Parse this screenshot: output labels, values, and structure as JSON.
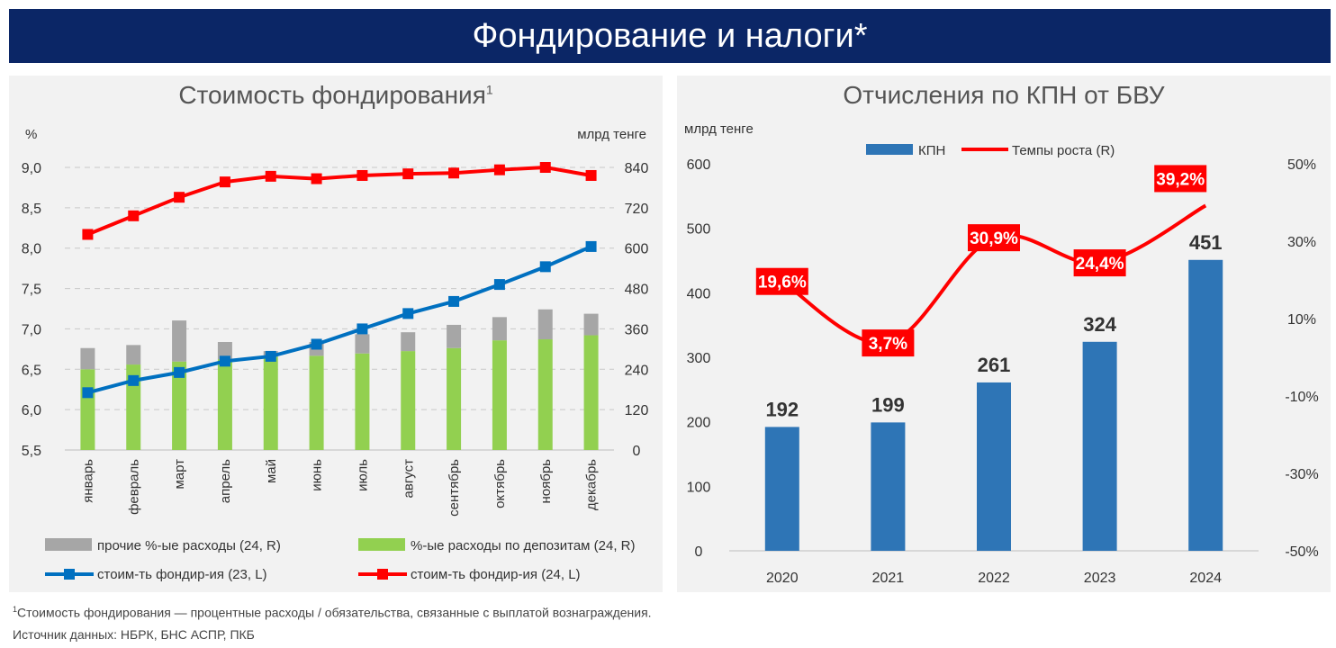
{
  "banner": {
    "title": "Фондирование и налоги*"
  },
  "footnote": {
    "marker": "1",
    "text": "Стоимость фондирования — процентные расходы / обязательства, связанные с выплатой вознаграждения.",
    "source": "Источник данных: НБРК, БНС АСПР, ПКБ"
  },
  "chart_data": [
    {
      "type": "bar",
      "title": "Стоимость фондирования",
      "title_sup": "1",
      "ylabel": "%",
      "ylabel_right": "млрд тенге",
      "ylim": [
        5.5,
        9.0
      ],
      "yticks": [
        "5,5",
        "6,0",
        "6,5",
        "7,0",
        "7,5",
        "8,0",
        "8,5",
        "9,0"
      ],
      "ylim_right": [
        0,
        840
      ],
      "yticks_right": [
        "0",
        "120",
        "240",
        "360",
        "480",
        "600",
        "720",
        "840"
      ],
      "categories": [
        "январь",
        "февраль",
        "март",
        "апрель",
        "май",
        "июнь",
        "июль",
        "август",
        "сентябрь",
        "октябрь",
        "ноябрь",
        "декабрь"
      ],
      "grid": true,
      "legend_position": "bottom",
      "series": [
        {
          "name": "%-ые расходы по депозитам (24, R)",
          "kind": "bar-stack",
          "axis": "right",
          "color": "#92d050",
          "values": [
            240,
            254,
            263,
            270,
            277,
            280,
            287,
            294,
            303,
            326,
            329,
            341
          ]
        },
        {
          "name": "прочие %-ые расходы (24, R)",
          "kind": "bar-stack",
          "axis": "right",
          "color": "#a6a6a6",
          "values": [
            63,
            58,
            122,
            51,
            17,
            41,
            57,
            56,
            69,
            69,
            89,
            64
          ]
        },
        {
          "name": "стоим-ть фондир-ия (23, L)",
          "kind": "line",
          "axis": "left",
          "color": "#0070c0",
          "values": [
            6.21,
            6.36,
            6.46,
            6.6,
            6.66,
            6.81,
            7.0,
            7.19,
            7.34,
            7.55,
            7.77,
            8.02
          ]
        },
        {
          "name": "стоим-ть фондир-ия (24, L)",
          "kind": "line",
          "axis": "left",
          "color": "#ff0000",
          "values": [
            8.17,
            8.4,
            8.63,
            8.82,
            8.89,
            8.86,
            8.9,
            8.92,
            8.93,
            8.97,
            9.0,
            8.9
          ]
        }
      ]
    },
    {
      "type": "bar",
      "title": "Отчисления по КПН от БВУ",
      "ylabel": "млрд тенге",
      "ylim": [
        0,
        600
      ],
      "yticks": [
        "0",
        "100",
        "200",
        "300",
        "400",
        "500",
        "600"
      ],
      "ylim_right": [
        -50,
        50
      ],
      "yticks_right": [
        "-50%",
        "-30%",
        "-10%",
        "10%",
        "30%",
        "50%"
      ],
      "categories": [
        "2020",
        "2021",
        "2022",
        "2023",
        "2024"
      ],
      "grid": false,
      "legend_position": "top",
      "series": [
        {
          "name": "КПН",
          "kind": "bar",
          "axis": "left",
          "color": "#2e75b6",
          "values": [
            192,
            199,
            261,
            324,
            451
          ],
          "labels": [
            "192",
            "199",
            "261",
            "324",
            "451"
          ]
        },
        {
          "name": "Темпы роста (R)",
          "kind": "line",
          "axis": "right",
          "color": "#ff0000",
          "values": [
            19.6,
            3.7,
            30.9,
            24.4,
            39.2
          ],
          "labels": [
            "19,6%",
            "3,7%",
            "30,9%",
            "24,4%",
            "39,2%"
          ]
        }
      ]
    }
  ]
}
